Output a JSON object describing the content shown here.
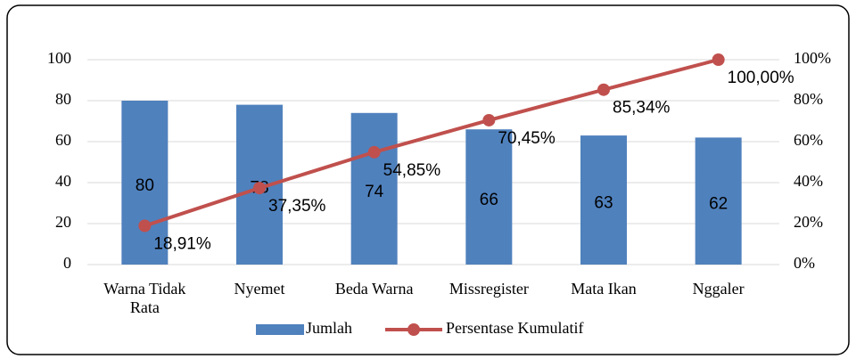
{
  "chart_data": {
    "type": "bar",
    "categories": [
      "Warna Tidak Rata",
      "Nyemet",
      "Beda Warna",
      "Missregister",
      "Mata Ikan",
      "Nggaler"
    ],
    "series": [
      {
        "name": "Jumlah",
        "type": "bar",
        "color": "#4f81bd",
        "values": [
          80,
          78,
          74,
          66,
          63,
          62
        ]
      },
      {
        "name": "Persentase Kumulatif",
        "type": "line",
        "axis": "y2",
        "color": "#c0504d",
        "values": [
          18.91,
          37.35,
          54.85,
          70.45,
          85.34,
          100.0
        ],
        "value_labels": [
          "18,91%",
          "37,35%",
          "54,85%",
          "70,45%",
          "85,34%",
          "100,00%"
        ]
      }
    ],
    "ylim": [
      0,
      100
    ],
    "yticks": [
      0,
      20,
      40,
      60,
      80,
      100
    ],
    "y2lim": [
      0,
      100
    ],
    "y2ticks": [
      {
        "value": 0,
        "label": "0%"
      },
      {
        "value": 20,
        "label": "20%"
      },
      {
        "value": 40,
        "label": "40%"
      },
      {
        "value": 60,
        "label": "60%"
      },
      {
        "value": 80,
        "label": "80%"
      },
      {
        "value": 100,
        "label": "100%"
      }
    ],
    "grid": true,
    "legend": "bottom"
  }
}
